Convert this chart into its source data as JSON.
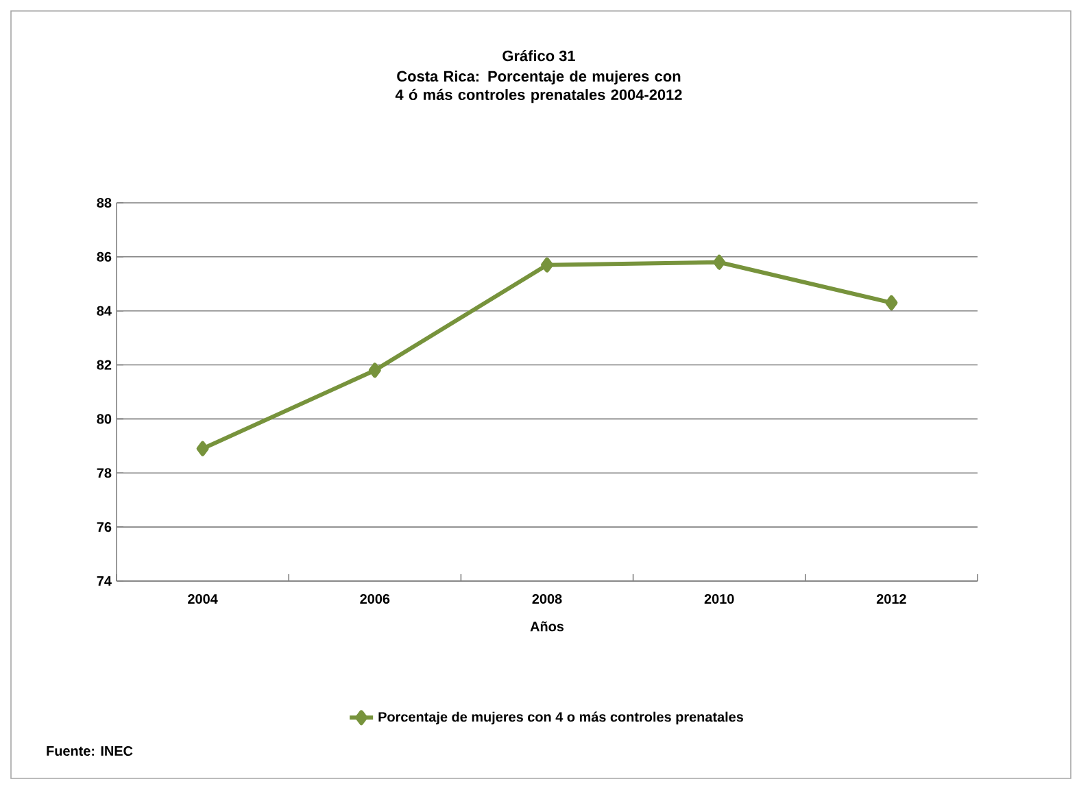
{
  "chart_data": {
    "type": "line",
    "title": "Gráfico 31",
    "subtitle": "Costa Rica: Porcentaje de mujeres con 4 ó más controles prenatales 2004-2012",
    "xlabel": "Años",
    "categories": [
      "2004",
      "2006",
      "2008",
      "2010",
      "2012"
    ],
    "series": [
      {
        "name": "Porcentaje de mujeres con 4 o más controles prenatales",
        "color": "#77933c",
        "values": [
          78.9,
          81.8,
          85.7,
          85.8,
          84.3
        ]
      }
    ],
    "ylim": [
      74,
      88
    ],
    "yticks": [
      74,
      76,
      78,
      80,
      82,
      84,
      86,
      88
    ],
    "grid": "y",
    "legend": "bottom",
    "marker": "diamond",
    "line_style": "solid",
    "annotations": [
      "Fuente: INEC"
    ]
  }
}
